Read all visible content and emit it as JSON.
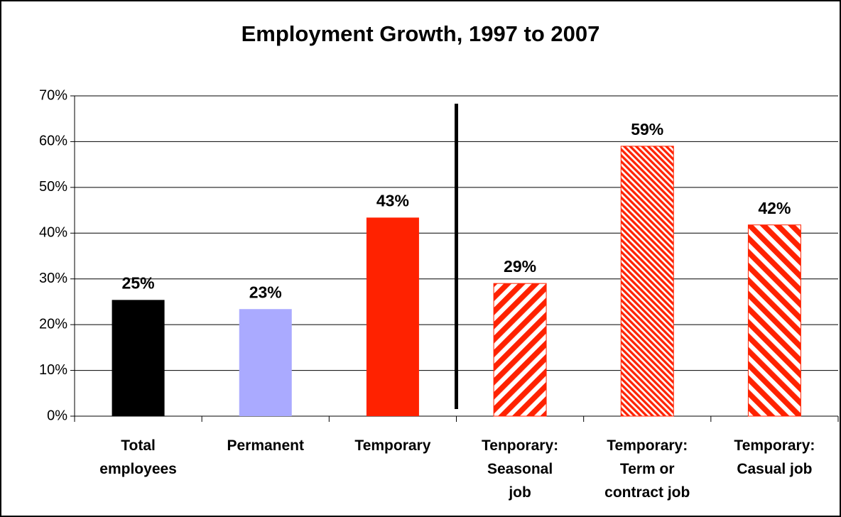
{
  "chart_data": {
    "type": "bar",
    "title": "Employment Growth, 1997 to 2007",
    "categories": [
      "Total\nemployees",
      "Permanent",
      "Temporary",
      "Tenporary:\nSeasonal\njob",
      "Temporary:\nTerm or\ncontract job",
      "Temporary:\nCasual job"
    ],
    "values": [
      25.4,
      23.4,
      43.4,
      29,
      59,
      41.8
    ],
    "value_labels": [
      "25%",
      "23%",
      "43%",
      "29%",
      "59%",
      "42%"
    ],
    "colors": [
      "#000000",
      "#aaaaff",
      "#ff2200",
      "#ff2200",
      "#ff2200",
      "#ff2200"
    ],
    "patterns": [
      "solid",
      "solid",
      "solid",
      "wide-diagonal-down",
      "fine-diagonal",
      "wide-diagonal-up"
    ],
    "ylim": [
      0,
      70
    ],
    "yticks": [
      {
        "value": 0,
        "label": "0%"
      },
      {
        "value": 10,
        "label": "10%"
      },
      {
        "value": 20,
        "label": "20%"
      },
      {
        "value": 30,
        "label": "30%"
      },
      {
        "value": 40,
        "label": "40%"
      },
      {
        "value": 50,
        "label": "50%"
      },
      {
        "value": 60,
        "label": "60%"
      },
      {
        "value": 70,
        "label": "70%"
      }
    ],
    "grid": true
  }
}
